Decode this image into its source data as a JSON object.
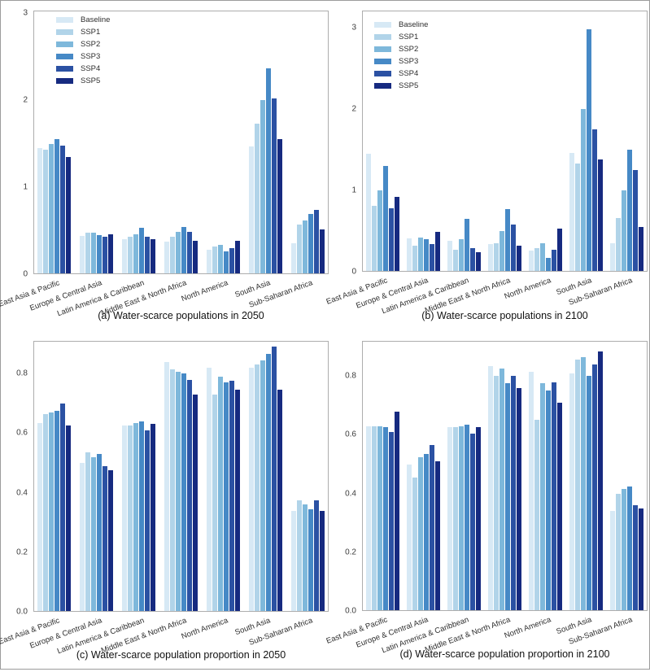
{
  "figure": {
    "legend_items": [
      {
        "label": "Baseline",
        "color": "#d7e9f5"
      },
      {
        "label": "SSP1",
        "color": "#b1d4e9"
      },
      {
        "label": "SSP2",
        "color": "#7eb8db"
      },
      {
        "label": "SSP3",
        "color": "#4689c6"
      },
      {
        "label": "SSP4",
        "color": "#2b51a3"
      },
      {
        "label": "SSP5",
        "color": "#162a80"
      }
    ],
    "frame_color": "#adadad",
    "background_color": "#ffffff"
  },
  "chart_data": [
    {
      "id": "a",
      "type": "bar",
      "title": "(a) Water-scarce populations in 2050",
      "xlabel": "",
      "ylabel": "",
      "legend_position": "upper-left",
      "grid": false,
      "ylim": [
        0,
        3.03
      ],
      "yticks": [
        {
          "label": "0",
          "value": 0
        },
        {
          "label": "1",
          "value": 1
        },
        {
          "label": "2",
          "value": 2
        },
        {
          "label": "3",
          "value": 3
        }
      ],
      "categories": [
        "East Asia & Pacific",
        "Europe & Central Asia",
        "Latin America & Caribbean",
        "Middle East & North Africa",
        "North America",
        "South Asia",
        "Sub-Saharan Africa"
      ],
      "series": [
        {
          "name": "Baseline",
          "values": [
            1.45,
            0.44,
            0.4,
            0.37,
            0.28,
            1.47,
            0.36
          ]
        },
        {
          "name": "SSP1",
          "values": [
            1.43,
            0.48,
            0.43,
            0.43,
            0.32,
            1.73,
            0.57
          ]
        },
        {
          "name": "SSP2",
          "values": [
            1.5,
            0.48,
            0.46,
            0.49,
            0.34,
            2.0,
            0.62
          ]
        },
        {
          "name": "SSP3",
          "values": [
            1.55,
            0.45,
            0.53,
            0.54,
            0.26,
            2.37,
            0.69
          ]
        },
        {
          "name": "SSP4",
          "values": [
            1.48,
            0.43,
            0.43,
            0.49,
            0.3,
            2.02,
            0.74
          ]
        },
        {
          "name": "SSP5",
          "values": [
            1.35,
            0.46,
            0.4,
            0.38,
            0.38,
            1.55,
            0.51
          ]
        }
      ]
    },
    {
      "id": "b",
      "type": "bar",
      "title": "(b) Water-scarce populations in 2100",
      "xlabel": "",
      "ylabel": "",
      "legend_position": "upper-left",
      "grid": false,
      "ylim": [
        0,
        3.21
      ],
      "yticks": [
        {
          "label": "0",
          "value": 0
        },
        {
          "label": "1",
          "value": 1
        },
        {
          "label": "2",
          "value": 2
        },
        {
          "label": "3",
          "value": 3
        }
      ],
      "categories": [
        "East Asia & Pacific",
        "Europe & Central Asia",
        "Latin America & Caribbean",
        "Middle East & North Africa",
        "North America",
        "South Asia",
        "Sub-Saharan Africa"
      ],
      "series": [
        {
          "name": "Baseline",
          "values": [
            1.45,
            0.41,
            0.38,
            0.34,
            0.26,
            1.46,
            0.35
          ]
        },
        {
          "name": "SSP1",
          "values": [
            0.81,
            0.32,
            0.27,
            0.35,
            0.29,
            1.33,
            0.66
          ]
        },
        {
          "name": "SSP2",
          "values": [
            1.0,
            0.42,
            0.4,
            0.5,
            0.35,
            2.0,
            1.0
          ]
        },
        {
          "name": "SSP3",
          "values": [
            1.3,
            0.4,
            0.65,
            0.77,
            0.17,
            2.98,
            1.5
          ]
        },
        {
          "name": "SSP4",
          "values": [
            0.78,
            0.34,
            0.29,
            0.58,
            0.27,
            1.75,
            1.25
          ]
        },
        {
          "name": "SSP5",
          "values": [
            0.92,
            0.49,
            0.24,
            0.32,
            0.53,
            1.38,
            0.55
          ]
        }
      ]
    },
    {
      "id": "c",
      "type": "bar",
      "title": "(c) Water-scarce population proportion in 2050",
      "xlabel": "",
      "ylabel": "",
      "legend_position": "none",
      "grid": false,
      "ylim": [
        0,
        0.91
      ],
      "yticks": [
        {
          "label": "0.0",
          "value": 0.0
        },
        {
          "label": "0.2",
          "value": 0.2
        },
        {
          "label": "0.4",
          "value": 0.4
        },
        {
          "label": "0.6",
          "value": 0.6
        },
        {
          "label": "0.8",
          "value": 0.8
        }
      ],
      "categories": [
        "East Asia & Pacific",
        "Europe & Central Asia",
        "Latin America & Caribbean",
        "Middle East & North Africa",
        "North America",
        "South Asia",
        "Sub-Saharan Africa"
      ],
      "series": [
        {
          "name": "Baseline",
          "values": [
            0.635,
            0.5,
            0.625,
            0.84,
            0.82,
            0.82,
            0.34
          ]
        },
        {
          "name": "SSP1",
          "values": [
            0.665,
            0.535,
            0.625,
            0.815,
            0.73,
            0.83,
            0.375
          ]
        },
        {
          "name": "SSP2",
          "values": [
            0.67,
            0.52,
            0.635,
            0.805,
            0.79,
            0.845,
            0.36
          ]
        },
        {
          "name": "SSP3",
          "values": [
            0.675,
            0.53,
            0.64,
            0.8,
            0.77,
            0.865,
            0.345
          ]
        },
        {
          "name": "SSP4",
          "values": [
            0.7,
            0.49,
            0.61,
            0.78,
            0.775,
            0.89,
            0.375
          ]
        },
        {
          "name": "SSP5",
          "values": [
            0.625,
            0.475,
            0.63,
            0.73,
            0.745,
            0.745,
            0.34
          ]
        }
      ]
    },
    {
      "id": "d",
      "type": "bar",
      "title": "(d) Water-scarce population proportion in 2100",
      "xlabel": "",
      "ylabel": "",
      "legend_position": "none",
      "grid": false,
      "ylim": [
        0,
        0.92
      ],
      "yticks": [
        {
          "label": "0.0",
          "value": 0.0
        },
        {
          "label": "0.2",
          "value": 0.2
        },
        {
          "label": "0.4",
          "value": 0.4
        },
        {
          "label": "0.6",
          "value": 0.6
        },
        {
          "label": "0.8",
          "value": 0.8
        }
      ],
      "categories": [
        "East Asia & Pacific",
        "Europe & Central Asia",
        "Latin America & Caribbean",
        "Middle East & North Africa",
        "North America",
        "South Asia",
        "Sub-Saharan Africa"
      ],
      "series": [
        {
          "name": "Baseline",
          "values": [
            0.63,
            0.5,
            0.625,
            0.835,
            0.815,
            0.81,
            0.34
          ]
        },
        {
          "name": "SSP1",
          "values": [
            0.63,
            0.455,
            0.625,
            0.8,
            0.65,
            0.855,
            0.4
          ]
        },
        {
          "name": "SSP2",
          "values": [
            0.63,
            0.525,
            0.63,
            0.825,
            0.775,
            0.865,
            0.415
          ]
        },
        {
          "name": "SSP3",
          "values": [
            0.625,
            0.535,
            0.635,
            0.775,
            0.75,
            0.8,
            0.425
          ]
        },
        {
          "name": "SSP4",
          "values": [
            0.61,
            0.565,
            0.605,
            0.8,
            0.78,
            0.84,
            0.36
          ]
        },
        {
          "name": "SSP5",
          "values": [
            0.68,
            0.51,
            0.625,
            0.76,
            0.71,
            0.885,
            0.35
          ]
        }
      ]
    }
  ]
}
